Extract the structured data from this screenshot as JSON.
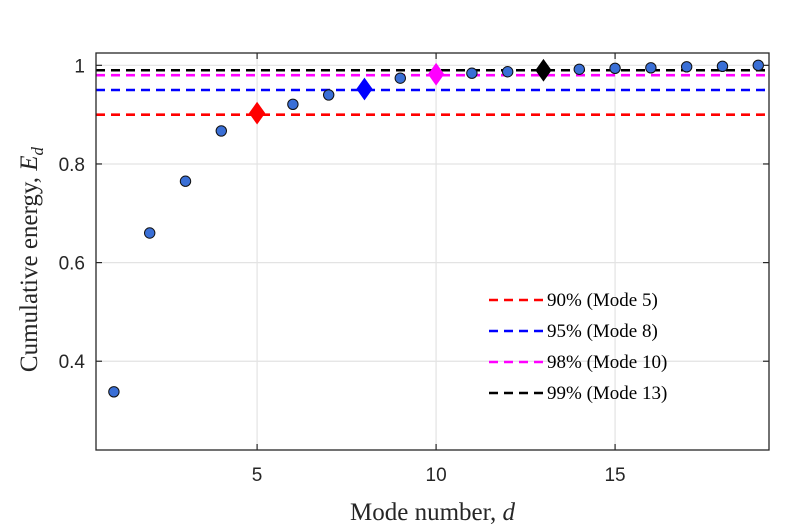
{
  "chart_data": {
    "type": "scatter",
    "title": "",
    "xlabel": "Mode number, ",
    "xlabel_var": "d",
    "ylabel": "Cumulative energy, ",
    "ylabel_var": "E",
    "ylabel_sub": "d",
    "xlim": [
      0.5,
      19.3
    ],
    "ylim": [
      0.22,
      1.025
    ],
    "xticks": [
      5,
      10,
      15
    ],
    "yticks": [
      0.4,
      0.6,
      0.8,
      1
    ],
    "ytick_labels": [
      "0.4",
      "0.6",
      "0.8",
      "1"
    ],
    "grid": true,
    "series": [
      {
        "name": "cumulative energy",
        "color": "#3a6fd6",
        "x": [
          1,
          2,
          3,
          4,
          5,
          6,
          7,
          8,
          9,
          10,
          11,
          12,
          13,
          14,
          15,
          16,
          17,
          18,
          19
        ],
        "values": [
          0.338,
          0.66,
          0.765,
          0.867,
          0.903,
          0.921,
          0.94,
          0.952,
          0.974,
          0.982,
          0.984,
          0.987,
          0.99,
          0.992,
          0.994,
          0.995,
          0.997,
          0.998,
          1.0
        ]
      }
    ],
    "thresholds": [
      {
        "label": "90% (Mode 5)",
        "value": 0.9,
        "mode": 5,
        "color": "#ff0000"
      },
      {
        "label": "95% (Mode 8)",
        "value": 0.95,
        "mode": 8,
        "color": "#0000ff"
      },
      {
        "label": "98% (Mode 10)",
        "value": 0.98,
        "mode": 10,
        "color": "#ff00ff"
      },
      {
        "label": "99% (Mode 13)",
        "value": 0.99,
        "mode": 13,
        "color": "#000000"
      }
    ],
    "legend_position": "bottom-right"
  }
}
